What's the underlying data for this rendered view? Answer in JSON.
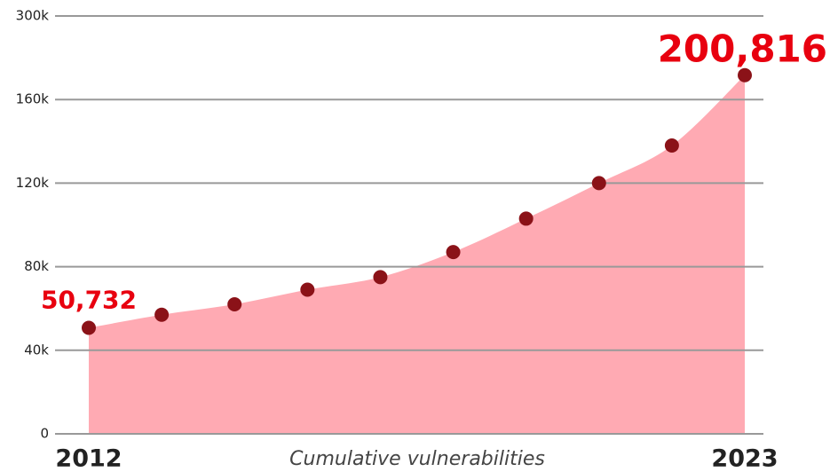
{
  "chart_data": {
    "type": "area",
    "x_label": "Cumulative vulnerabilities",
    "categories": [
      "2012",
      null,
      null,
      null,
      null,
      null,
      null,
      null,
      null,
      "2023"
    ],
    "values": [
      50732,
      57000,
      62000,
      69000,
      75000,
      87000,
      103000,
      120000,
      138000,
      200816
    ],
    "value_labels": [
      "50,732",
      null,
      null,
      null,
      null,
      null,
      null,
      null,
      null,
      "200,816"
    ],
    "color": "#ffaab3",
    "marker_color": "#8b1218",
    "label_color": "#e8000f",
    "ylim": [
      0,
      300000
    ],
    "yticks": [
      0,
      {
        "value": 40000,
        "label": "40k"
      },
      {
        "value": 80000,
        "label": "80k"
      },
      {
        "value": 120000,
        "label": "120k"
      },
      {
        "value": 160000,
        "label": "160k"
      },
      {
        "value": 300000,
        "label": "300k"
      }
    ],
    "grid": true
  }
}
